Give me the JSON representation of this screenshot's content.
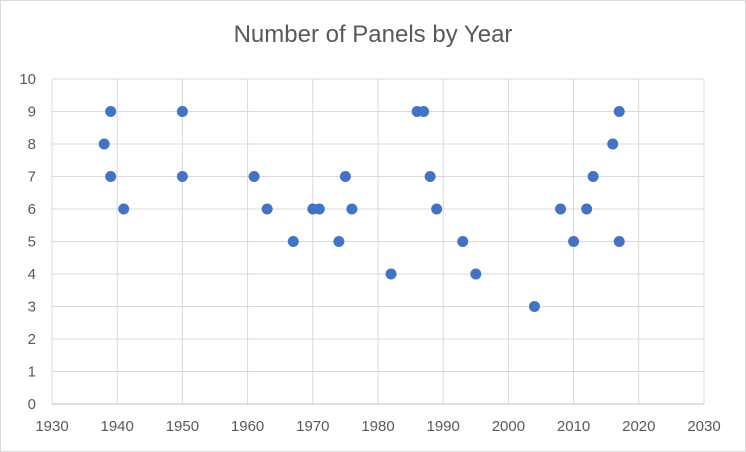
{
  "chart_data": {
    "type": "scatter",
    "title": "Number of Panels by Year",
    "xlabel": "",
    "ylabel": "",
    "xlim": [
      1930,
      2030
    ],
    "ylim": [
      0,
      10
    ],
    "x_ticks": [
      1930,
      1940,
      1950,
      1960,
      1970,
      1980,
      1990,
      2000,
      2010,
      2020,
      2030
    ],
    "y_ticks": [
      0,
      1,
      2,
      3,
      4,
      5,
      6,
      7,
      8,
      9,
      10
    ],
    "grid": true,
    "legend": "none",
    "marker_color": "#4472C4",
    "series": [
      {
        "points": [
          {
            "x": 1938,
            "y": 8
          },
          {
            "x": 1939,
            "y": 9
          },
          {
            "x": 1939,
            "y": 7
          },
          {
            "x": 1941,
            "y": 6
          },
          {
            "x": 1950,
            "y": 9
          },
          {
            "x": 1950,
            "y": 7
          },
          {
            "x": 1961,
            "y": 7
          },
          {
            "x": 1963,
            "y": 6
          },
          {
            "x": 1967,
            "y": 5
          },
          {
            "x": 1970,
            "y": 6
          },
          {
            "x": 1971,
            "y": 6
          },
          {
            "x": 1974,
            "y": 5
          },
          {
            "x": 1975,
            "y": 7
          },
          {
            "x": 1976,
            "y": 6
          },
          {
            "x": 1982,
            "y": 4
          },
          {
            "x": 1986,
            "y": 9
          },
          {
            "x": 1987,
            "y": 9
          },
          {
            "x": 1988,
            "y": 7
          },
          {
            "x": 1989,
            "y": 6
          },
          {
            "x": 1993,
            "y": 5
          },
          {
            "x": 1995,
            "y": 4
          },
          {
            "x": 2004,
            "y": 3
          },
          {
            "x": 2008,
            "y": 6
          },
          {
            "x": 2010,
            "y": 5
          },
          {
            "x": 2012,
            "y": 6
          },
          {
            "x": 2013,
            "y": 7
          },
          {
            "x": 2016,
            "y": 8
          },
          {
            "x": 2017,
            "y": 9
          },
          {
            "x": 2017,
            "y": 5
          }
        ]
      }
    ]
  }
}
